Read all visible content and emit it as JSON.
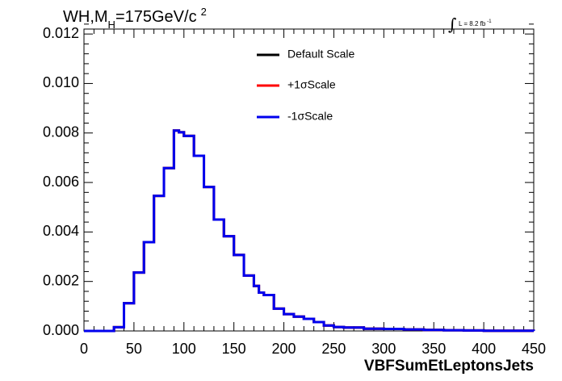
{
  "title": {
    "main": "WH,M",
    "subscript": "H",
    "value": "=175GeV/c",
    "superscript": "2"
  },
  "luminosity": {
    "integral_symbol": "∫",
    "text": "L = 8.2 fb",
    "superscript": "-1"
  },
  "chart_data": {
    "type": "line",
    "style": "step-histogram",
    "title": "",
    "xlabel": "VBFSumEtLeptonsJets",
    "ylabel": "",
    "xlim": [
      0,
      450
    ],
    "ylim": [
      0,
      0.0122
    ],
    "xticks": [
      0,
      50,
      100,
      150,
      200,
      250,
      300,
      350,
      400,
      450
    ],
    "xtick_labels": [
      "0",
      "50",
      "100",
      "150",
      "200",
      "250",
      "300",
      "350",
      "400",
      "450"
    ],
    "yticks": [
      0,
      0.002,
      0.004,
      0.006,
      0.008,
      0.01,
      0.012
    ],
    "ytick_labels": [
      "0.000",
      "0.002",
      "0.004",
      "0.006",
      "0.008",
      "0.010",
      "0.012"
    ],
    "grid": false,
    "legend_position": "top-center",
    "bin_edges": [
      0,
      10,
      20,
      30,
      35,
      40,
      45,
      50,
      55,
      60,
      65,
      70,
      75,
      80,
      85,
      90,
      95,
      100,
      105,
      110,
      115,
      120,
      125,
      130,
      135,
      140,
      145,
      150,
      155,
      160,
      165,
      170,
      175,
      180,
      190,
      200,
      210,
      220,
      230,
      240,
      250,
      260,
      280,
      300,
      320,
      340,
      360,
      380,
      400,
      420,
      450
    ],
    "series": [
      {
        "name": "Default Scale",
        "color": "#000000",
        "values": [
          0,
          0,
          0,
          0.00015,
          0.00015,
          0.00112,
          0.00112,
          0.00236,
          0.00236,
          0.00359,
          0.00359,
          0.00546,
          0.00546,
          0.00658,
          0.00658,
          0.0081,
          0.00803,
          0.00788,
          0.00788,
          0.00708,
          0.00708,
          0.00582,
          0.00582,
          0.0045,
          0.0045,
          0.00383,
          0.00383,
          0.00307,
          0.00307,
          0.00224,
          0.00224,
          0.00182,
          0.00155,
          0.00145,
          0.0009,
          0.00068,
          0.00058,
          0.00049,
          0.00036,
          0.00022,
          0.00016,
          0.00014,
          9e-05,
          8e-05,
          6e-05,
          4e-05,
          3e-05,
          2e-05,
          1e-05,
          1e-05
        ]
      },
      {
        "name": "+1σScale",
        "color": "#ff0000",
        "values": [
          0,
          0,
          0,
          0.00015,
          0.00015,
          0.00112,
          0.00112,
          0.00236,
          0.00236,
          0.00359,
          0.00359,
          0.00546,
          0.00546,
          0.00658,
          0.00658,
          0.0081,
          0.00803,
          0.00788,
          0.00788,
          0.00708,
          0.00708,
          0.00582,
          0.00582,
          0.0045,
          0.0045,
          0.00383,
          0.00383,
          0.00307,
          0.00307,
          0.00224,
          0.00224,
          0.00182,
          0.00155,
          0.00145,
          0.0009,
          0.00068,
          0.00058,
          0.00049,
          0.00036,
          0.00022,
          0.00016,
          0.00014,
          9e-05,
          8e-05,
          6e-05,
          4e-05,
          3e-05,
          2e-05,
          1e-05,
          1e-05
        ]
      },
      {
        "name": "-1σScale",
        "color": "#0000ee",
        "values": [
          0,
          0,
          0,
          0.00015,
          0.00015,
          0.00112,
          0.00112,
          0.00236,
          0.00236,
          0.00359,
          0.00359,
          0.00546,
          0.00546,
          0.00658,
          0.00658,
          0.0081,
          0.00803,
          0.00788,
          0.00788,
          0.00708,
          0.00708,
          0.00582,
          0.00582,
          0.0045,
          0.0045,
          0.00383,
          0.00383,
          0.00307,
          0.00307,
          0.00224,
          0.00224,
          0.00182,
          0.00155,
          0.00145,
          0.0009,
          0.00068,
          0.00058,
          0.00049,
          0.00036,
          0.00022,
          0.00016,
          0.00014,
          9e-05,
          8e-05,
          6e-05,
          4e-05,
          3e-05,
          2e-05,
          1e-05,
          1e-05
        ]
      }
    ]
  }
}
